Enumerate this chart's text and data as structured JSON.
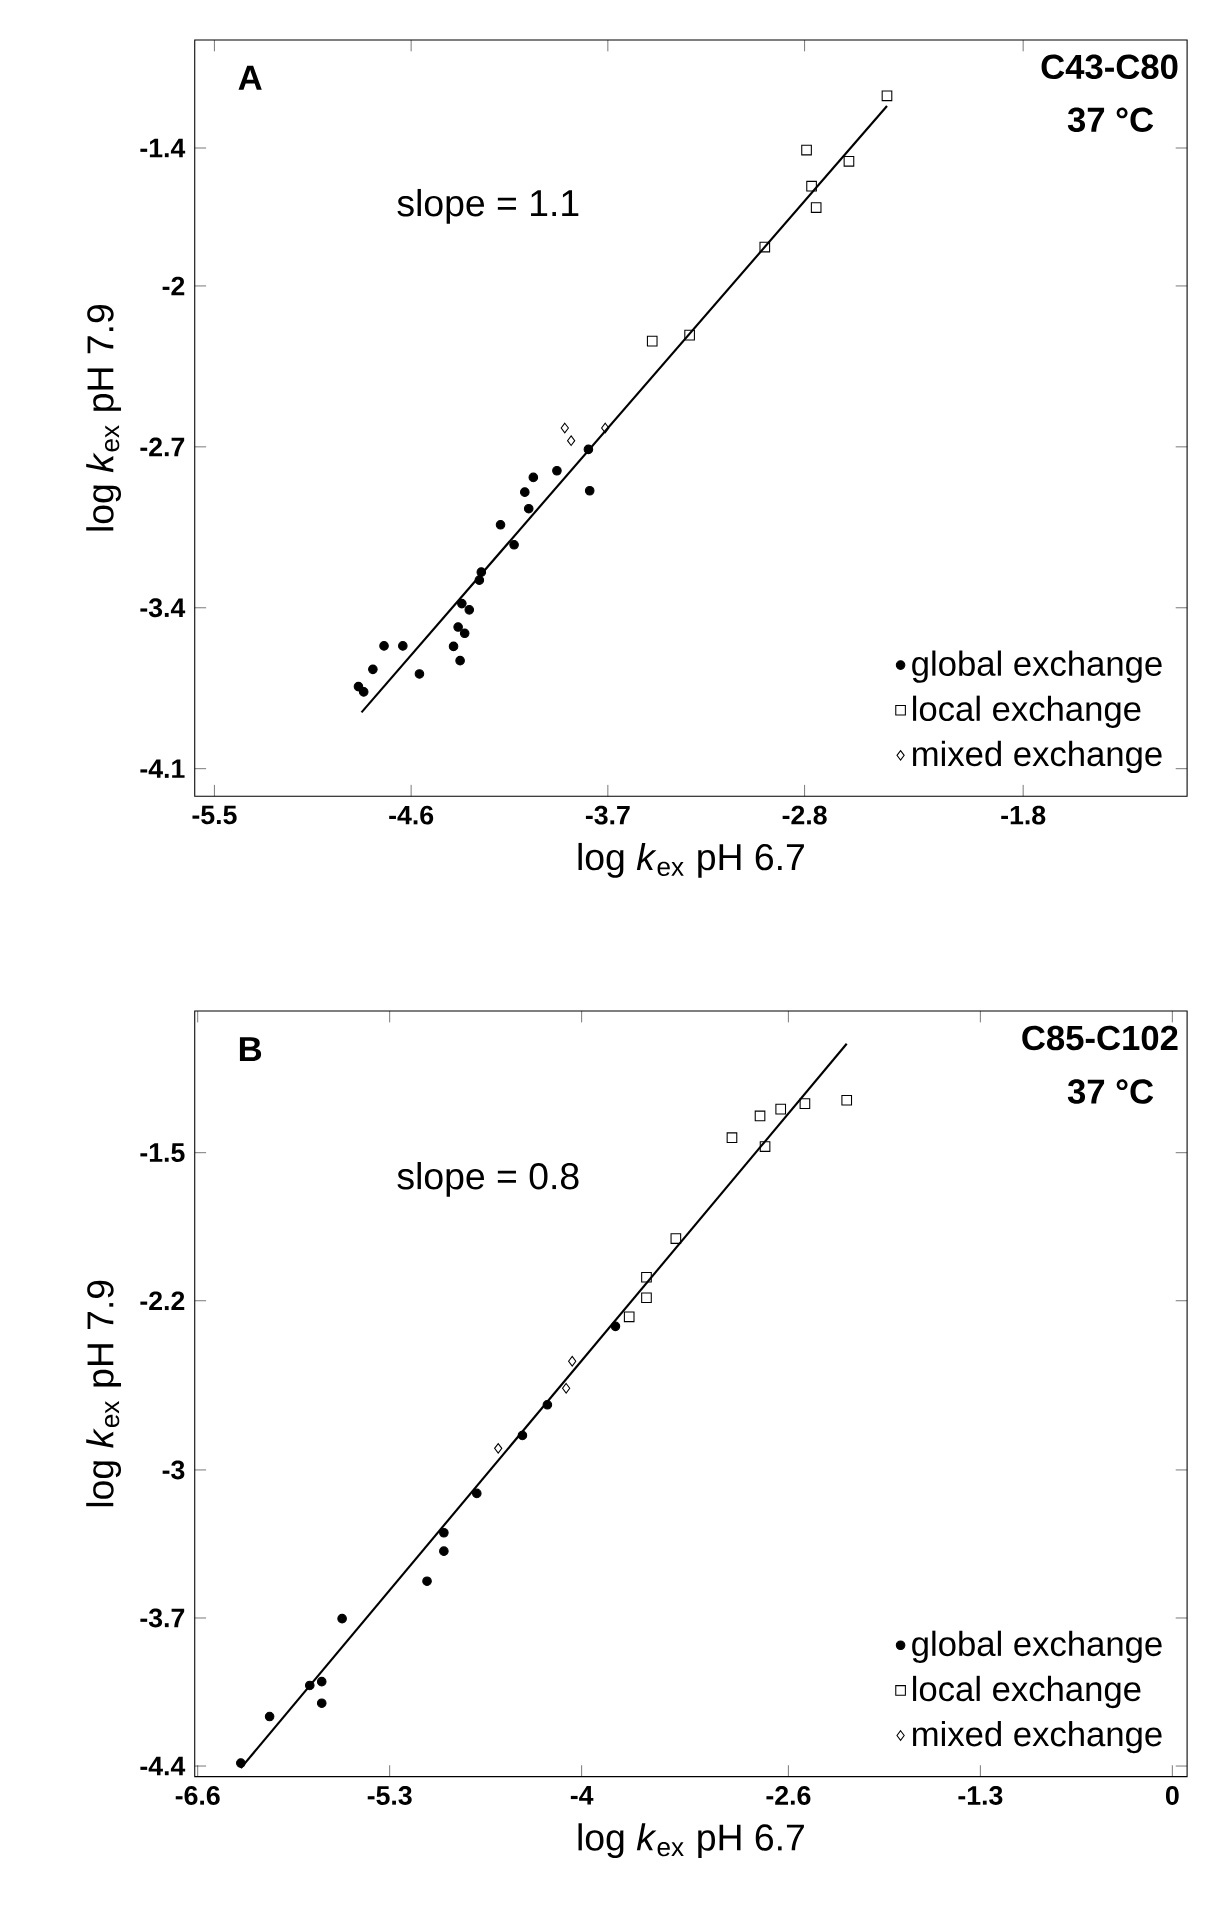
{
  "chart_data": [
    {
      "type": "scatter",
      "xlabel": "log  *k*$_{ex}$  pH 6.7",
      "ylabel": "log  *k*$_{ex}$  pH 7.9",
      "annotations": [
        "A",
        "C43-C80",
        "37 °C",
        "slope = 1.1"
      ],
      "xlim": [
        -5.59,
        -1.05
      ],
      "ylim": [
        -4.22,
        -0.93
      ],
      "xticks": [
        -5.5,
        -4.6,
        -3.7,
        -2.8,
        -1.8
      ],
      "yticks": [
        -4.1,
        -3.4,
        -2.7,
        -2,
        -1.4
      ],
      "grid": false,
      "legend": "bottom right",
      "series": [
        {
          "name": "global exchange",
          "color": "#000000",
          "marker": "circle",
          "x": [
            -3.789,
            -3.783,
            -3.933,
            -4.041,
            -4.08,
            -4.062,
            -4.191,
            -4.129,
            -4.279,
            -4.288,
            -4.368,
            -4.385,
            -4.334,
            -4.355,
            -4.406,
            -4.376,
            -4.562,
            -4.638,
            -4.724,
            -4.775,
            -4.841,
            -4.817
          ],
          "values": [
            -2.711,
            -2.891,
            -2.804,
            -2.833,
            -2.897,
            -2.969,
            -3.039,
            -3.126,
            -3.245,
            -3.28,
            -3.382,
            -3.484,
            -3.409,
            -3.511,
            -3.568,
            -3.63,
            -3.688,
            -3.566,
            -3.566,
            -3.668,
            -3.743,
            -3.766
          ]
        },
        {
          "name": "local exchange",
          "color": "#000000",
          "marker": "square",
          "x": [
            -2.423,
            -2.791,
            -2.597,
            -2.768,
            -2.747,
            -2.982,
            -3.326,
            -3.497
          ],
          "values": [
            -1.173,
            -1.409,
            -1.458,
            -1.566,
            -1.659,
            -1.831,
            -2.214,
            -2.24
          ]
        },
        {
          "name": "mixed exchange",
          "color": "#000000",
          "marker": "diamond",
          "x": [
            -3.897,
            -3.868,
            -3.712
          ],
          "values": [
            -2.618,
            -2.673,
            -2.618
          ]
        },
        {
          "type": "line",
          "color": "#000000",
          "marker": "none",
          "x": [
            -4.827,
            -2.423
          ],
          "values": [
            -3.855,
            -1.217
          ]
        }
      ]
    },
    {
      "type": "scatter",
      "xlabel": "log  *k*$_{ex}$  pH 6.7",
      "ylabel": "log  *k*$_{ex}$  pH 7.9",
      "annotations": [
        "B",
        "C85-C102",
        "37 °C",
        "slope = 0.8"
      ],
      "xlim": [
        -6.62,
        0.1
      ],
      "ylim": [
        -4.45,
        -0.83
      ],
      "xticks": [
        -6.6,
        -5.3,
        -4,
        -2.6,
        -1.3,
        0
      ],
      "yticks": [
        -4.4,
        -3.7,
        -3,
        -2.2,
        -1.5
      ],
      "grid": false,
      "legend": "bottom right",
      "series": [
        {
          "name": "global exchange",
          "color": "#000000",
          "marker": "circle",
          "x": [
            -3.771,
            -4.232,
            -4.401,
            -4.71,
            -4.933,
            -4.933,
            -5.047,
            -5.622,
            -5.76,
            -5.841,
            -5.76,
            -6.113,
            -6.308
          ],
          "values": [
            -2.321,
            -2.692,
            -2.837,
            -3.111,
            -3.297,
            -3.384,
            -3.526,
            -3.703,
            -4.001,
            -4.019,
            -4.103,
            -4.166,
            -4.386
          ]
        },
        {
          "name": "local exchange",
          "color": "#000000",
          "marker": "square",
          "x": [
            -2.205,
            -2.488,
            -2.652,
            -2.792,
            -2.758,
            -2.982,
            -3.362,
            -3.561,
            -3.561,
            -3.678
          ],
          "values": [
            -1.252,
            -1.268,
            -1.294,
            -1.326,
            -1.471,
            -1.429,
            -1.906,
            -2.089,
            -2.186,
            -2.276
          ]
        },
        {
          "name": "mixed exchange",
          "color": "#000000",
          "marker": "diamond",
          "x": [
            -4.064,
            -4.565,
            -4.105
          ],
          "values": [
            -2.486,
            -2.898,
            -2.614
          ]
        },
        {
          "type": "line",
          "color": "#000000",
          "marker": "none",
          "x": [
            -6.308,
            -2.205
          ],
          "values": [
            -4.41,
            -0.985
          ]
        }
      ]
    }
  ]
}
